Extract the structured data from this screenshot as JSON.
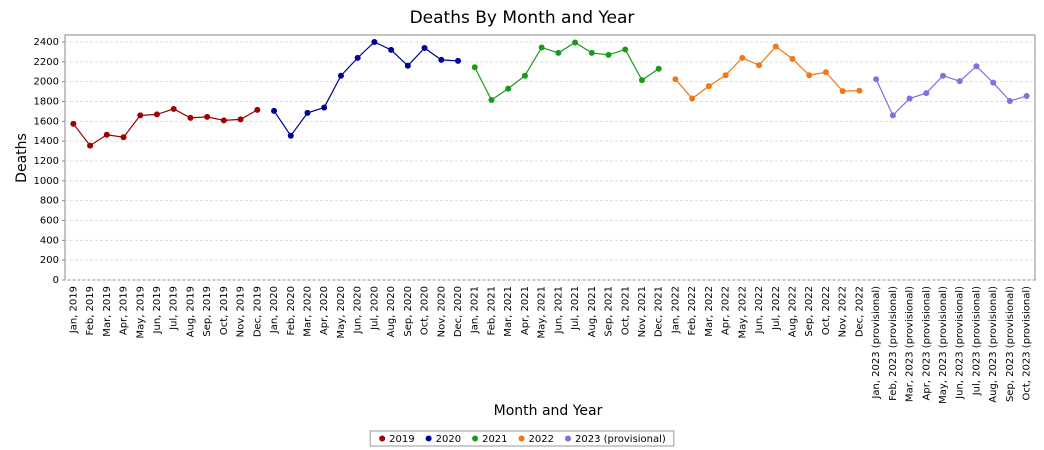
{
  "chart_data": {
    "type": "line",
    "title": "Deaths By Month and Year",
    "x_label": "Month and Year",
    "y_label": "Deaths",
    "categories": [
      "Jan, 2019",
      "Feb, 2019",
      "Mar, 2019",
      "Apr, 2019",
      "May, 2019",
      "Jun, 2019",
      "Jul, 2019",
      "Aug, 2019",
      "Sep, 2019",
      "Oct, 2019",
      "Nov, 2019",
      "Dec, 2019",
      "Jan, 2020",
      "Feb, 2020",
      "Mar, 2020",
      "Apr, 2020",
      "May, 2020",
      "Jun, 2020",
      "Jul, 2020",
      "Aug, 2020",
      "Sep, 2020",
      "Oct, 2020",
      "Nov, 2020",
      "Dec, 2020",
      "Jan, 2021",
      "Feb, 2021",
      "Mar, 2021",
      "Apr, 2021",
      "May, 2021",
      "Jun, 2021",
      "Jul, 2021",
      "Aug, 2021",
      "Sep, 2021",
      "Oct, 2021",
      "Nov, 2021",
      "Dec, 2021",
      "Jan, 2022",
      "Feb, 2022",
      "Mar, 2022",
      "Apr, 2022",
      "May, 2022",
      "Jun, 2022",
      "Jul, 2022",
      "Aug, 2022",
      "Sep, 2022",
      "Oct, 2022",
      "Nov, 2022",
      "Dec, 2022",
      "Jan, 2023 (provisional)",
      "Feb, 2023 (provisional)",
      "Mar, 2023 (provisional)",
      "Apr, 2023 (provisional)",
      "May, 2023 (provisional)",
      "Jun, 2023 (provisional)",
      "Jul, 2023 (provisional)",
      "Aug, 2023 (provisional)",
      "Sep, 2023 (provisional)",
      "Oct, 2023 (provisional)"
    ],
    "series": [
      {
        "name": "2019",
        "color": "#a00000",
        "values": [
          1575,
          1355,
          1465,
          1440,
          1660,
          1670,
          1725,
          1635,
          1645,
          1610,
          1620,
          1715,
          null,
          null,
          null,
          null,
          null,
          null,
          null,
          null,
          null,
          null,
          null,
          null,
          null,
          null,
          null,
          null,
          null,
          null,
          null,
          null,
          null,
          null,
          null,
          null,
          null,
          null,
          null,
          null,
          null,
          null,
          null,
          null,
          null,
          null,
          null,
          null,
          null,
          null,
          null,
          null,
          null,
          null,
          null,
          null,
          null,
          null
        ]
      },
      {
        "name": "2020",
        "color": "#000099",
        "values": [
          null,
          null,
          null,
          null,
          null,
          null,
          null,
          null,
          null,
          null,
          null,
          null,
          1705,
          1455,
          1685,
          1740,
          2060,
          2240,
          2400,
          2320,
          2160,
          2340,
          2220,
          2210,
          null,
          null,
          null,
          null,
          null,
          null,
          null,
          null,
          null,
          null,
          null,
          null,
          null,
          null,
          null,
          null,
          null,
          null,
          null,
          null,
          null,
          null,
          null,
          null,
          null,
          null,
          null,
          null,
          null,
          null,
          null,
          null,
          null,
          null
        ]
      },
      {
        "name": "2021",
        "color": "#1a9a1a",
        "values": [
          null,
          null,
          null,
          null,
          null,
          null,
          null,
          null,
          null,
          null,
          null,
          null,
          null,
          null,
          null,
          null,
          null,
          null,
          null,
          null,
          null,
          null,
          null,
          null,
          2145,
          1815,
          1930,
          2060,
          2345,
          2290,
          2395,
          2290,
          2270,
          2325,
          2015,
          2130,
          null,
          null,
          null,
          null,
          null,
          null,
          null,
          null,
          null,
          null,
          null,
          null,
          null,
          null,
          null,
          null,
          null,
          null,
          null,
          null,
          null,
          null
        ]
      },
      {
        "name": "2022",
        "color": "#f07818",
        "values": [
          null,
          null,
          null,
          null,
          null,
          null,
          null,
          null,
          null,
          null,
          null,
          null,
          null,
          null,
          null,
          null,
          null,
          null,
          null,
          null,
          null,
          null,
          null,
          null,
          null,
          null,
          null,
          null,
          null,
          null,
          null,
          null,
          null,
          null,
          null,
          null,
          2025,
          1830,
          1955,
          2065,
          2240,
          2165,
          2355,
          2230,
          2065,
          2095,
          1905,
          1910,
          null,
          null,
          null,
          null,
          null,
          null,
          null,
          null,
          null,
          null
        ]
      },
      {
        "name": "2023 (provisional)",
        "color": "#8070e0",
        "values": [
          null,
          null,
          null,
          null,
          null,
          null,
          null,
          null,
          null,
          null,
          null,
          null,
          null,
          null,
          null,
          null,
          null,
          null,
          null,
          null,
          null,
          null,
          null,
          null,
          null,
          null,
          null,
          null,
          null,
          null,
          null,
          null,
          null,
          null,
          null,
          null,
          null,
          null,
          null,
          null,
          null,
          null,
          null,
          null,
          null,
          null,
          null,
          null,
          2025,
          1660,
          1830,
          1885,
          2060,
          2005,
          2155,
          1990,
          1805,
          1855
        ]
      }
    ],
    "ylim": [
      0,
      2400
    ],
    "yticks": [
      0,
      200,
      400,
      600,
      800,
      1000,
      1200,
      1400,
      1600,
      1800,
      2000,
      2200,
      2400
    ],
    "grid": true,
    "legend": "bottom"
  }
}
